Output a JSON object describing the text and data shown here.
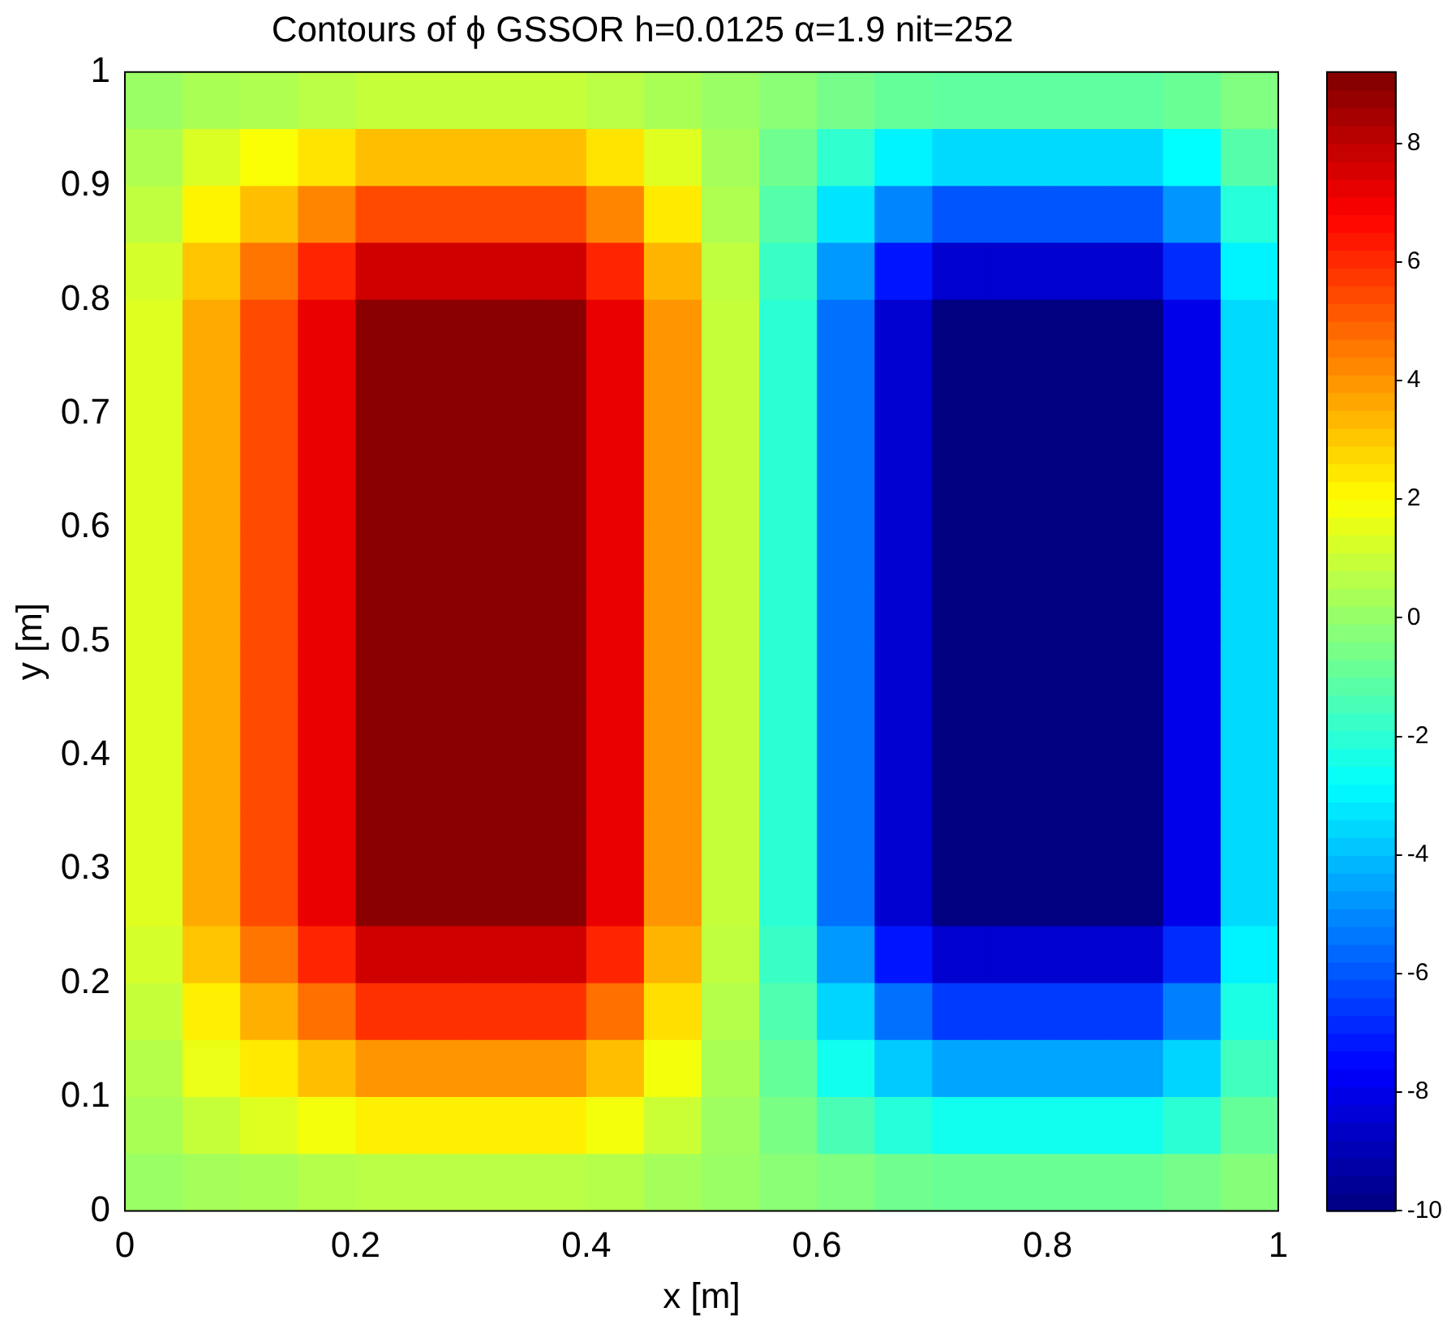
{
  "chart_data": {
    "type": "heatmap",
    "title": "Contours of ϕ GSSOR h=0.0125 α=1.9 nit=252",
    "xlabel": "x [m]",
    "ylabel": "y [m]",
    "x": [
      0.025,
      0.075,
      0.125,
      0.175,
      0.225,
      0.275,
      0.325,
      0.375,
      0.425,
      0.475,
      0.525,
      0.575,
      0.625,
      0.675,
      0.725,
      0.775,
      0.825,
      0.875,
      0.925,
      0.975
    ],
    "y": [
      0.975,
      0.925,
      0.875,
      0.825,
      0.775,
      0.725,
      0.675,
      0.625,
      0.575,
      0.525,
      0.475,
      0.425,
      0.375,
      0.325,
      0.275,
      0.225,
      0.175,
      0.125,
      0.075,
      0.025
    ],
    "cells": [
      [
        0.1,
        0.4,
        0.5,
        0.7,
        0.9,
        0.9,
        0.9,
        0.9,
        0.7,
        0.4,
        0.1,
        -0.2,
        -0.6,
        -0.9,
        -1,
        -1,
        -1,
        -1,
        -0.8,
        -0.4
      ],
      [
        0.5,
        1.3,
        1.9,
        2.5,
        3.2,
        3.2,
        3.2,
        3.2,
        2.5,
        1.4,
        0.3,
        -0.7,
        -1.9,
        -3,
        -3.5,
        -3.5,
        -3.5,
        -3.5,
        -2.8,
        -1.2
      ],
      [
        0.8,
        2.2,
        3.2,
        4.3,
        5.4,
        5.4,
        5.4,
        5.4,
        4.3,
        2.4,
        0.5,
        -1.2,
        -3.3,
        -5.1,
        -6,
        -6,
        -6,
        -6,
        -4.8,
        -2.1
      ],
      [
        1.2,
        3.1,
        4.6,
        6.1,
        7.7,
        7.7,
        7.7,
        7.7,
        6.1,
        3.4,
        0.8,
        -1.7,
        -4.7,
        -7.2,
        -8.5,
        -8.5,
        -8.5,
        -8.5,
        -6.8,
        -3
      ],
      [
        1.4,
        3.6,
        5.4,
        7.2,
        9,
        9,
        9,
        9,
        7.2,
        4,
        0.9,
        -2,
        -5.5,
        -8.5,
        -10,
        -10,
        -10,
        -10,
        -8,
        -3.5
      ],
      [
        1.4,
        3.6,
        5.4,
        7.2,
        9,
        9,
        9,
        9,
        7.2,
        4,
        0.9,
        -2,
        -5.5,
        -8.5,
        -10,
        -10,
        -10,
        -10,
        -8,
        -3.5
      ],
      [
        1.4,
        3.6,
        5.4,
        7.2,
        9,
        9,
        9,
        9,
        7.2,
        4,
        0.9,
        -2,
        -5.5,
        -8.5,
        -10,
        -10,
        -10,
        -10,
        -8,
        -3.5
      ],
      [
        1.4,
        3.6,
        5.4,
        7.2,
        9,
        9,
        9,
        9,
        7.2,
        4,
        0.9,
        -2,
        -5.5,
        -8.5,
        -10,
        -10,
        -10,
        -10,
        -8,
        -3.5
      ],
      [
        1.4,
        3.6,
        5.4,
        7.2,
        9,
        9,
        9,
        9,
        7.2,
        4,
        0.9,
        -2,
        -5.5,
        -8.5,
        -10,
        -10,
        -10,
        -10,
        -8,
        -3.5
      ],
      [
        1.4,
        3.6,
        5.4,
        7.2,
        9,
        9,
        9,
        9,
        7.2,
        4,
        0.9,
        -2,
        -5.5,
        -8.5,
        -10,
        -10,
        -10,
        -10,
        -8,
        -3.5
      ],
      [
        1.4,
        3.6,
        5.4,
        7.2,
        9,
        9,
        9,
        9,
        7.2,
        4,
        0.9,
        -2,
        -5.5,
        -8.5,
        -10,
        -10,
        -10,
        -10,
        -8,
        -3.5
      ],
      [
        1.4,
        3.6,
        5.4,
        7.2,
        9,
        9,
        9,
        9,
        7.2,
        4,
        0.9,
        -2,
        -5.5,
        -8.5,
        -10,
        -10,
        -10,
        -10,
        -8,
        -3.5
      ],
      [
        1.4,
        3.6,
        5.4,
        7.2,
        9,
        9,
        9,
        9,
        7.2,
        4,
        0.9,
        -2,
        -5.5,
        -8.5,
        -10,
        -10,
        -10,
        -10,
        -8,
        -3.5
      ],
      [
        1.4,
        3.6,
        5.4,
        7.2,
        9,
        9,
        9,
        9,
        7.2,
        4,
        0.9,
        -2,
        -5.5,
        -8.5,
        -10,
        -10,
        -10,
        -10,
        -8,
        -3.5
      ],
      [
        1.4,
        3.6,
        5.4,
        7.2,
        9,
        9,
        9,
        9,
        7.2,
        4,
        0.9,
        -2,
        -5.5,
        -8.5,
        -10,
        -10,
        -10,
        -10,
        -8,
        -3.5
      ],
      [
        1.2,
        3.1,
        4.6,
        6.1,
        7.7,
        7.7,
        7.7,
        7.7,
        6.1,
        3.4,
        0.8,
        -1.7,
        -4.7,
        -7.2,
        -8.5,
        -8.5,
        -8.5,
        -8.5,
        -6.8,
        -3
      ],
      [
        0.9,
        2.3,
        3.5,
        4.7,
        5.9,
        5.9,
        5.9,
        5.9,
        4.7,
        2.6,
        0.6,
        -1.3,
        -3.6,
        -5.5,
        -6.5,
        -6.5,
        -6.5,
        -6.5,
        -5.2,
        -2.3
      ],
      [
        0.6,
        1.6,
        2.4,
        3.2,
        4,
        4,
        4,
        4,
        3.2,
        1.8,
        0.4,
        -0.9,
        -2.5,
        -3.8,
        -4.5,
        -4.5,
        -4.5,
        -4.5,
        -3.6,
        -1.6
      ],
      [
        0.4,
        0.9,
        1.4,
        1.8,
        2.3,
        2.3,
        2.3,
        2.3,
        1.8,
        1,
        0.2,
        -0.5,
        -1.4,
        -2.1,
        -2.5,
        -2.5,
        -2.5,
        -2.5,
        -2,
        -0.9
      ],
      [
        0.1,
        0.3,
        0.4,
        0.6,
        0.7,
        0.7,
        0.7,
        0.7,
        0.6,
        0.3,
        0.1,
        -0.2,
        -0.4,
        -0.7,
        -0.8,
        -0.8,
        -0.8,
        -0.8,
        -0.6,
        -0.3
      ]
    ],
    "xlim": [
      0,
      1
    ],
    "xticks": [
      0,
      0.2,
      0.4,
      0.6,
      0.8,
      1
    ],
    "ylim": [
      0,
      1
    ],
    "yticks": [
      0,
      0.1,
      0.2,
      0.3,
      0.4,
      0.5,
      0.6,
      0.7,
      0.8,
      0.9,
      1
    ],
    "clim": [
      -10,
      9.2
    ],
    "cticks": [
      -10,
      -8,
      -6,
      -4,
      -2,
      0,
      2,
      4,
      6,
      8
    ],
    "grid": false,
    "legend": false
  }
}
